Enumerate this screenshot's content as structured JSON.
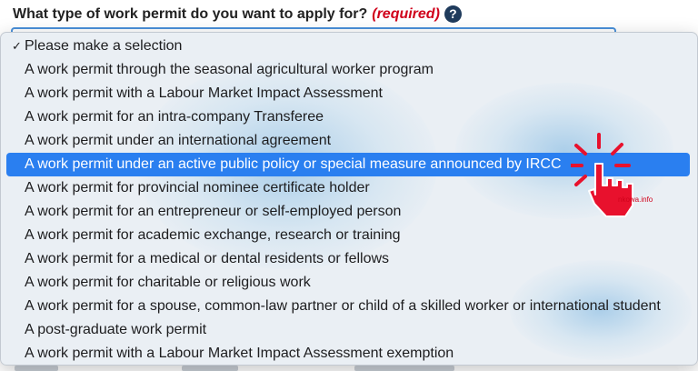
{
  "form": {
    "question": "What type of work permit do you want to apply for?",
    "required_label": "(required)",
    "help_glyph": "?"
  },
  "dropdown": {
    "check_glyph": "✓",
    "options": [
      {
        "label": "Please make a selection",
        "selected": true,
        "highlighted": false
      },
      {
        "label": "A work permit through the seasonal agricultural worker program",
        "selected": false,
        "highlighted": false
      },
      {
        "label": "A work permit with a Labour Market Impact Assessment",
        "selected": false,
        "highlighted": false
      },
      {
        "label": "A work permit for an intra-company Transferee",
        "selected": false,
        "highlighted": false
      },
      {
        "label": "A work permit under an international agreement",
        "selected": false,
        "highlighted": false
      },
      {
        "label": "A work permit under an active public policy or special measure announced by IRCC",
        "selected": false,
        "highlighted": true
      },
      {
        "label": "A work permit for provincial nominee certificate holder",
        "selected": false,
        "highlighted": false
      },
      {
        "label": "A work permit for an entrepreneur or self-employed person",
        "selected": false,
        "highlighted": false
      },
      {
        "label": "A work permit for academic exchange, research or training",
        "selected": false,
        "highlighted": false
      },
      {
        "label": "A work permit for a medical or dental residents or fellows",
        "selected": false,
        "highlighted": false
      },
      {
        "label": "A work permit for charitable or religious work",
        "selected": false,
        "highlighted": false
      },
      {
        "label": "A work permit for a spouse, common-law partner or child of a skilled worker or international student",
        "selected": false,
        "highlighted": false
      },
      {
        "label": "A post-graduate work permit",
        "selected": false,
        "highlighted": false
      },
      {
        "label": "A work permit with a Labour Market Impact Assessment exemption",
        "selected": false,
        "highlighted": false
      }
    ]
  },
  "overlay": {
    "watermark": "nkowa.info",
    "cursor_icon": "hand-pointer-icon"
  },
  "colors": {
    "highlight": "#2a7ff0",
    "required": "#d0021b",
    "help_icon": "#1f3b5c",
    "cursor": "#e8112d"
  }
}
